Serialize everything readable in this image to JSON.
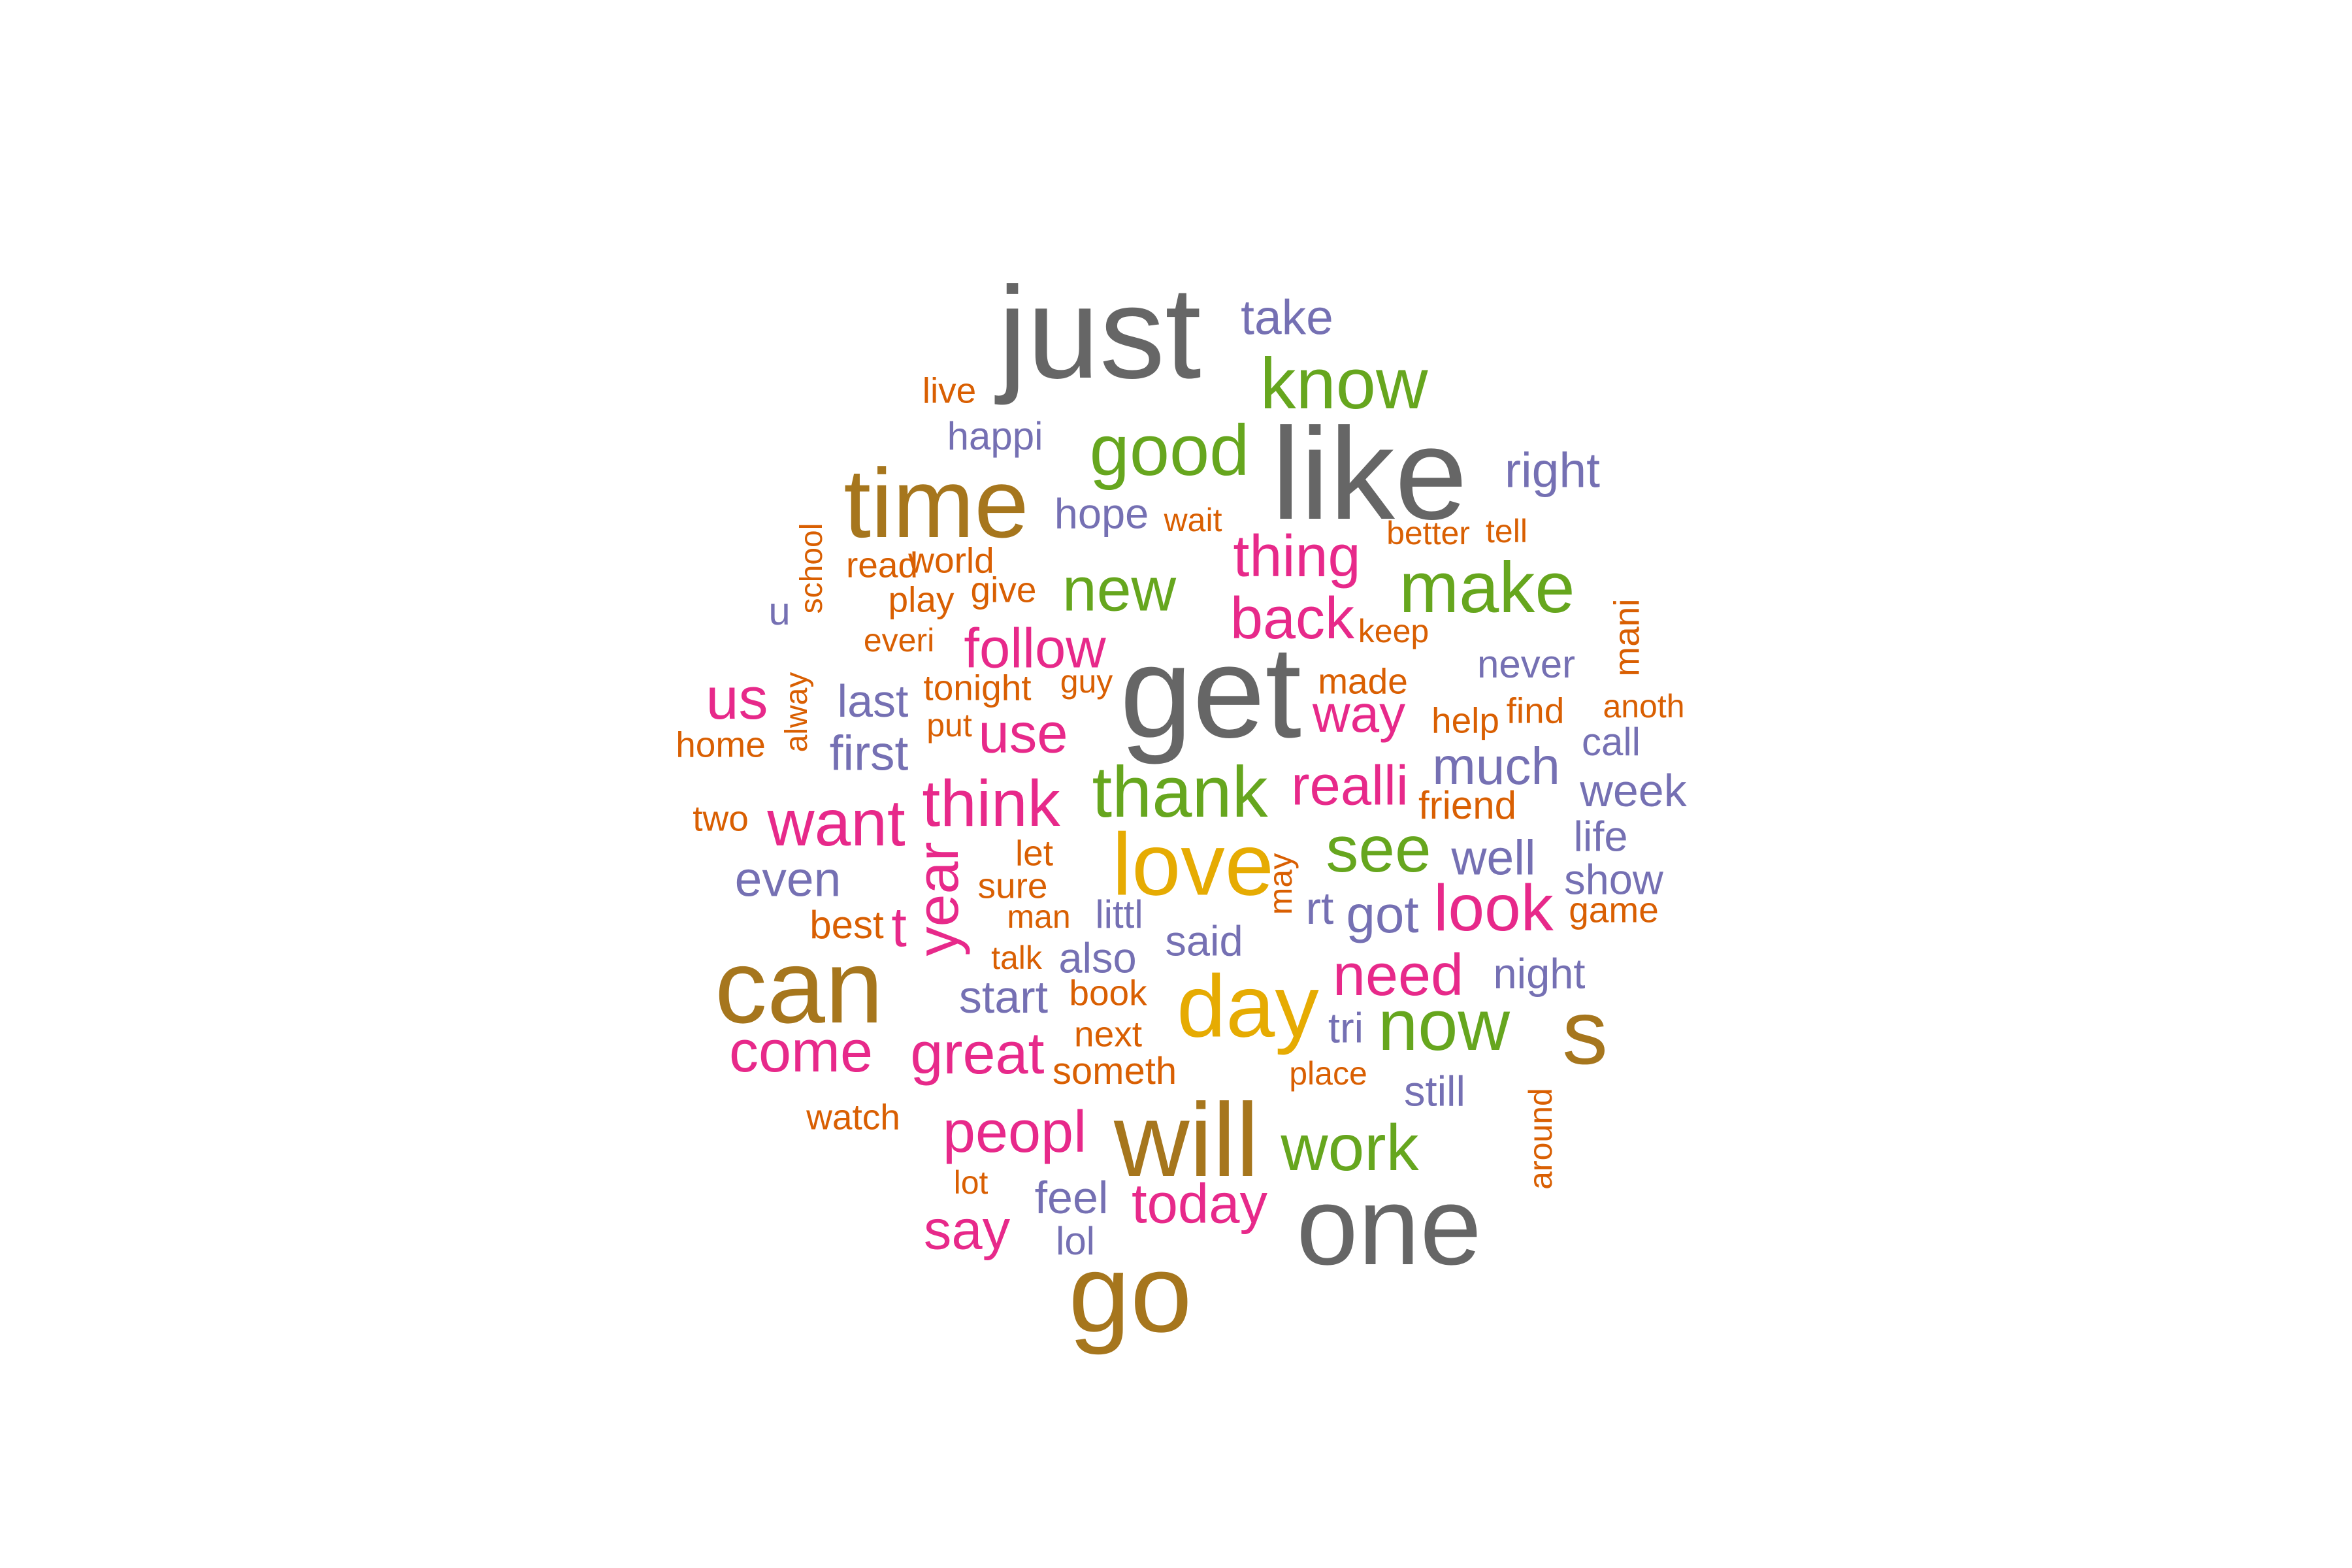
{
  "chart_data": {
    "type": "wordcloud",
    "colors": {
      "gray": "#666666",
      "gold": "#A6761D",
      "green": "#66A61E",
      "yellow": "#E6AB02",
      "pink": "#E7298A",
      "purple": "#7570B3",
      "orange": "#D95F02"
    },
    "words": [
      {
        "text": "just",
        "color": "gray"
      },
      {
        "text": "like",
        "color": "gray"
      },
      {
        "text": "get",
        "color": "gray"
      },
      {
        "text": "one",
        "color": "gray"
      },
      {
        "text": "go",
        "color": "gold"
      },
      {
        "text": "can",
        "color": "gold"
      },
      {
        "text": "will",
        "color": "gold"
      },
      {
        "text": "time",
        "color": "gold"
      },
      {
        "text": "s",
        "color": "gold"
      },
      {
        "text": "love",
        "color": "yellow"
      },
      {
        "text": "day",
        "color": "yellow"
      },
      {
        "text": "know",
        "color": "green"
      },
      {
        "text": "good",
        "color": "green"
      },
      {
        "text": "make",
        "color": "green"
      },
      {
        "text": "thank",
        "color": "green"
      },
      {
        "text": "new",
        "color": "green"
      },
      {
        "text": "see",
        "color": "green"
      },
      {
        "text": "now",
        "color": "green"
      },
      {
        "text": "work",
        "color": "green"
      },
      {
        "text": "thing",
        "color": "pink"
      },
      {
        "text": "back",
        "color": "pink"
      },
      {
        "text": "follow",
        "color": "pink"
      },
      {
        "text": "us",
        "color": "pink"
      },
      {
        "text": "use",
        "color": "pink"
      },
      {
        "text": "way",
        "color": "pink"
      },
      {
        "text": "want",
        "color": "pink"
      },
      {
        "text": "think",
        "color": "pink"
      },
      {
        "text": "realli",
        "color": "pink"
      },
      {
        "text": "year",
        "color": "pink"
      },
      {
        "text": "t",
        "color": "pink"
      },
      {
        "text": "look",
        "color": "pink"
      },
      {
        "text": "need",
        "color": "pink"
      },
      {
        "text": "come",
        "color": "pink"
      },
      {
        "text": "great",
        "color": "pink"
      },
      {
        "text": "peopl",
        "color": "pink"
      },
      {
        "text": "say",
        "color": "pink"
      },
      {
        "text": "today",
        "color": "pink"
      },
      {
        "text": "take",
        "color": "purple"
      },
      {
        "text": "happi",
        "color": "purple"
      },
      {
        "text": "right",
        "color": "purple"
      },
      {
        "text": "hope",
        "color": "purple"
      },
      {
        "text": "u",
        "color": "purple"
      },
      {
        "text": "never",
        "color": "purple"
      },
      {
        "text": "last",
        "color": "purple"
      },
      {
        "text": "first",
        "color": "purple"
      },
      {
        "text": "much",
        "color": "purple"
      },
      {
        "text": "call",
        "color": "purple"
      },
      {
        "text": "week",
        "color": "purple"
      },
      {
        "text": "life",
        "color": "purple"
      },
      {
        "text": "well",
        "color": "purple"
      },
      {
        "text": "show",
        "color": "purple"
      },
      {
        "text": "even",
        "color": "purple"
      },
      {
        "text": "rt",
        "color": "purple"
      },
      {
        "text": "got",
        "color": "purple"
      },
      {
        "text": "littl",
        "color": "purple"
      },
      {
        "text": "said",
        "color": "purple"
      },
      {
        "text": "also",
        "color": "purple"
      },
      {
        "text": "night",
        "color": "purple"
      },
      {
        "text": "start",
        "color": "purple"
      },
      {
        "text": "tri",
        "color": "purple"
      },
      {
        "text": "still",
        "color": "purple"
      },
      {
        "text": "feel",
        "color": "purple"
      },
      {
        "text": "lol",
        "color": "purple"
      },
      {
        "text": "live",
        "color": "orange"
      },
      {
        "text": "wait",
        "color": "orange"
      },
      {
        "text": "better",
        "color": "orange"
      },
      {
        "text": "tell",
        "color": "orange"
      },
      {
        "text": "school",
        "color": "orange"
      },
      {
        "text": "read",
        "color": "orange"
      },
      {
        "text": "world",
        "color": "orange"
      },
      {
        "text": "play",
        "color": "orange"
      },
      {
        "text": "give",
        "color": "orange"
      },
      {
        "text": "keep",
        "color": "orange"
      },
      {
        "text": "mani",
        "color": "orange"
      },
      {
        "text": "everi",
        "color": "orange"
      },
      {
        "text": "alway",
        "color": "orange"
      },
      {
        "text": "tonight",
        "color": "orange"
      },
      {
        "text": "guy",
        "color": "orange"
      },
      {
        "text": "made",
        "color": "orange"
      },
      {
        "text": "help",
        "color": "orange"
      },
      {
        "text": "find",
        "color": "orange"
      },
      {
        "text": "anoth",
        "color": "orange"
      },
      {
        "text": "home",
        "color": "orange"
      },
      {
        "text": "put",
        "color": "orange"
      },
      {
        "text": "friend",
        "color": "orange"
      },
      {
        "text": "two",
        "color": "orange"
      },
      {
        "text": "let",
        "color": "orange"
      },
      {
        "text": "sure",
        "color": "orange"
      },
      {
        "text": "may",
        "color": "orange"
      },
      {
        "text": "best",
        "color": "orange"
      },
      {
        "text": "man",
        "color": "orange"
      },
      {
        "text": "game",
        "color": "orange"
      },
      {
        "text": "talk",
        "color": "orange"
      },
      {
        "text": "book",
        "color": "orange"
      },
      {
        "text": "next",
        "color": "orange"
      },
      {
        "text": "place",
        "color": "orange"
      },
      {
        "text": "someth",
        "color": "orange"
      },
      {
        "text": "watch",
        "color": "orange"
      },
      {
        "text": "around",
        "color": "orange"
      },
      {
        "text": "lot",
        "color": "orange"
      }
    ]
  }
}
